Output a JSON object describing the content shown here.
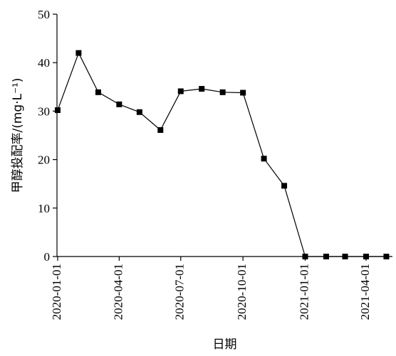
{
  "chart_data": {
    "type": "line",
    "title": "",
    "xlabel": "日期",
    "ylabel": "甲醇投配率/(mg·L⁻¹)",
    "ylim": [
      0,
      50
    ],
    "xlim": [
      "2019-12-31",
      "2021-05-10"
    ],
    "yticks": [
      0,
      10,
      20,
      30,
      40,
      50
    ],
    "xticks": [
      "2020-01-01",
      "2020-04-01",
      "2020-07-01",
      "2020-10-01",
      "2021-01-01",
      "2021-04-01"
    ],
    "grid": false,
    "marker": "square",
    "colors": {
      "line": "#000000",
      "marker": "#000000"
    },
    "x": [
      "2020-01-01",
      "2020-02-01",
      "2020-03-01",
      "2020-04-01",
      "2020-05-01",
      "2020-06-01",
      "2020-07-01",
      "2020-08-01",
      "2020-09-01",
      "2020-10-01",
      "2020-11-01",
      "2020-12-01",
      "2021-01-01",
      "2021-02-01",
      "2021-03-01",
      "2021-04-01",
      "2021-05-01"
    ],
    "series": [
      {
        "values": [
          30.2,
          42,
          33.9,
          31.4,
          29.8,
          26.1,
          34.1,
          34.6,
          33.9,
          33.8,
          20.2,
          14.6,
          0,
          0,
          0,
          0,
          0
        ]
      }
    ]
  }
}
